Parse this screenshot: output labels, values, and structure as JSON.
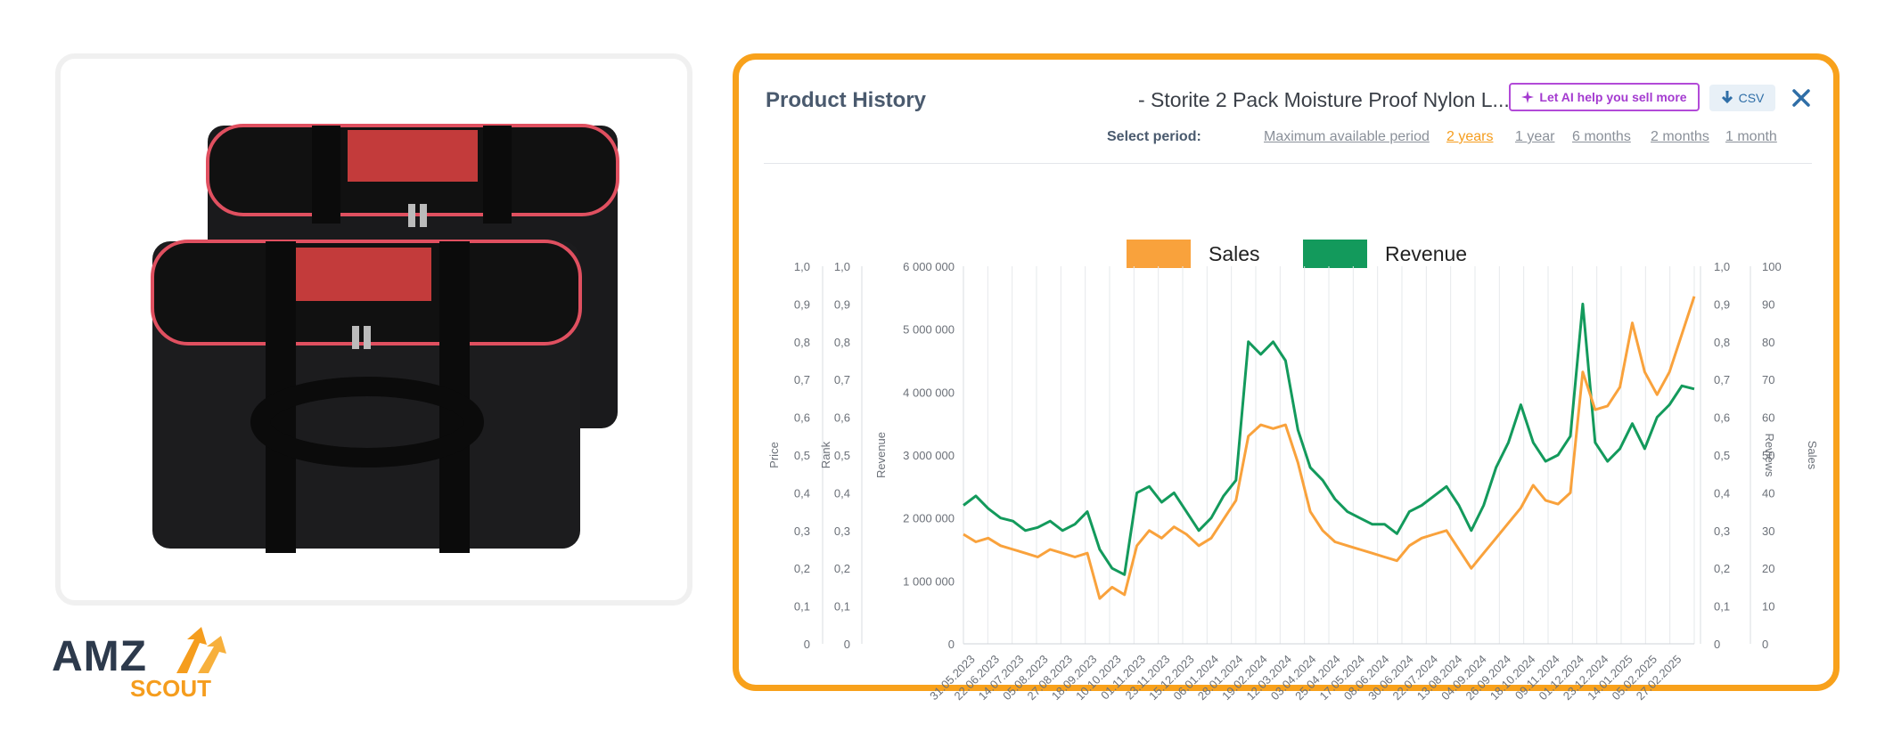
{
  "product_image": {
    "alt": "2 pack black storage bag with red zipper pouch"
  },
  "logo": {
    "amz": "AMZ",
    "scout": "SCOUT"
  },
  "panel": {
    "title": "Product History",
    "product_name": "- Storite 2 Pack Moisture Proof Nylon L...",
    "ai_button": "Let AI help you sell more",
    "csv_button": "CSV",
    "close_icon": "close-icon",
    "period_label": "Select period:",
    "periods": [
      "Maximum available period",
      "2 years",
      "1 year",
      "6 months",
      "2 months",
      "1 month"
    ],
    "active_period": "2 years"
  },
  "colors": {
    "sales": "#f9a23c",
    "revenue": "#139a5c",
    "accent": "#f8a11b",
    "ai": "#b24ad8"
  },
  "chart_data": {
    "type": "line",
    "legend": [
      {
        "name": "Sales",
        "color": "#f9a23c"
      },
      {
        "name": "Revenue",
        "color": "#139a5c"
      }
    ],
    "axes": {
      "price": {
        "label": "Price",
        "ticks": [
          "0",
          "0,1",
          "0,2",
          "0,3",
          "0,4",
          "0,5",
          "0,6",
          "0,7",
          "0,8",
          "0,9",
          "1,0"
        ]
      },
      "rank": {
        "label": "Rank",
        "ticks": [
          "0",
          "0,1",
          "0,2",
          "0,3",
          "0,4",
          "0,5",
          "0,6",
          "0,7",
          "0,8",
          "0,9",
          "1,0"
        ]
      },
      "revenue": {
        "label": "Revenue",
        "ticks": [
          "0",
          "1 000 000",
          "2 000 000",
          "3 000 000",
          "4 000 000",
          "5 000 000",
          "6 000 000"
        ],
        "range": [
          0,
          6000000
        ]
      },
      "reviews": {
        "label": "Reviews",
        "ticks": [
          "0",
          "0,1",
          "0,2",
          "0,3",
          "0,4",
          "0,5",
          "0,6",
          "0,7",
          "0,8",
          "0,9",
          "1,0"
        ]
      },
      "sales": {
        "label": "Sales",
        "ticks": [
          "0",
          "10",
          "20",
          "30",
          "40",
          "50",
          "60",
          "70",
          "80",
          "90",
          "100"
        ],
        "range": [
          0,
          100
        ]
      }
    },
    "x_labels": [
      "31.05.2023",
      "22.06.2023",
      "14.07.2023",
      "05.08.2023",
      "27.08.2023",
      "18.09.2023",
      "10.10.2023",
      "01.11.2023",
      "23.11.2023",
      "15.12.2023",
      "06.01.2024",
      "28.01.2024",
      "19.02.2024",
      "12.03.2024",
      "03.04.2024",
      "25.04.2024",
      "17.05.2024",
      "08.06.2024",
      "30.06.2024",
      "22.07.2024",
      "13.08.2024",
      "04.09.2024",
      "26.09.2024",
      "18.10.2024",
      "09.11.2024",
      "01.12.2024",
      "23.12.2024",
      "14.01.2025",
      "05.02.2025",
      "27.02.2025"
    ],
    "series": [
      {
        "name": "Sales",
        "axis": "sales",
        "values": [
          29,
          27,
          28,
          26,
          25,
          24,
          23,
          25,
          24,
          23,
          24,
          12,
          15,
          13,
          26,
          30,
          28,
          31,
          29,
          26,
          28,
          33,
          38,
          55,
          58,
          57,
          58,
          48,
          35,
          30,
          27,
          26,
          25,
          24,
          23,
          22,
          26,
          28,
          29,
          30,
          25,
          20,
          24,
          28,
          32,
          36,
          42,
          38,
          37,
          40,
          72,
          62,
          63,
          68,
          85,
          72,
          66,
          72,
          82,
          92
        ]
      },
      {
        "name": "Revenue",
        "axis": "revenue",
        "values": [
          2200000,
          2350000,
          2150000,
          2000000,
          1950000,
          1800000,
          1850000,
          1950000,
          1800000,
          1900000,
          2100000,
          1500000,
          1200000,
          1100000,
          2400000,
          2500000,
          2250000,
          2400000,
          2100000,
          1800000,
          2000000,
          2350000,
          2600000,
          4800000,
          4600000,
          4800000,
          4500000,
          3400000,
          2800000,
          2600000,
          2300000,
          2100000,
          2000000,
          1900000,
          1900000,
          1750000,
          2100000,
          2200000,
          2350000,
          2500000,
          2200000,
          1800000,
          2200000,
          2800000,
          3200000,
          3800000,
          3200000,
          2900000,
          3000000,
          3300000,
          5400000,
          3200000,
          2900000,
          3100000,
          3500000,
          3100000,
          3600000,
          3800000,
          4100000,
          4050000
        ]
      }
    ]
  }
}
